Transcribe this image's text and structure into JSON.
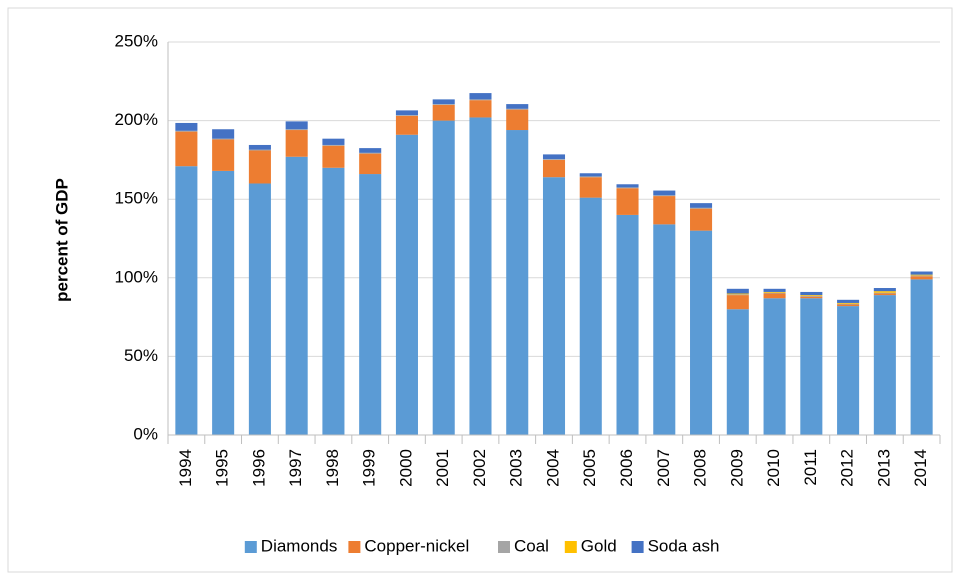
{
  "chart_data": {
    "type": "stacked-bar",
    "y_label": "percent of GDP",
    "categories": [
      "1994",
      "1995",
      "1996",
      "1997",
      "1998",
      "1999",
      "2000",
      "2001",
      "2002",
      "2003",
      "2004",
      "2005",
      "2006",
      "2007",
      "2008",
      "2009",
      "2010",
      "2011",
      "2012",
      "2013",
      "2014"
    ],
    "series": [
      {
        "name": "Diamonds",
        "color": "#5b9bd5",
        "values": [
          171,
          168,
          160,
          177,
          170,
          166,
          191,
          200,
          202,
          194,
          164,
          151,
          140,
          134,
          130,
          80,
          87,
          87,
          82,
          89,
          99
        ]
      },
      {
        "name": "Copper-nickel",
        "color": "#ed7d31",
        "values": [
          22,
          20,
          21,
          17,
          14,
          13,
          12,
          10,
          11,
          13,
          11,
          13,
          17,
          18,
          14,
          9,
          3,
          1,
          1,
          1,
          2
        ]
      },
      {
        "name": "Coal",
        "color": "#a5a5a5",
        "values": [
          0.5,
          0.5,
          0.5,
          0.5,
          0.5,
          0.5,
          0.5,
          0.5,
          0.5,
          0.5,
          0.5,
          0.5,
          0.5,
          0.5,
          0.5,
          0.5,
          0.5,
          0.5,
          0.5,
          0.5,
          0.5
        ]
      },
      {
        "name": "Gold",
        "color": "#ffc000",
        "values": [
          0,
          0,
          0,
          0,
          0,
          0,
          0,
          0,
          0,
          0,
          0,
          0,
          0,
          0,
          0,
          0.5,
          0.5,
          0.5,
          0.5,
          1,
          0.5
        ]
      },
      {
        "name": "Soda ash",
        "color": "#4472c4",
        "values": [
          5,
          6,
          3,
          5,
          4,
          3,
          3,
          3,
          4,
          3,
          3,
          2,
          2,
          3,
          3,
          3,
          2,
          2,
          2,
          2,
          2
        ]
      }
    ],
    "ylim": [
      0,
      250
    ],
    "yticks": [
      {
        "value": 0,
        "label": "0%"
      },
      {
        "value": 50,
        "label": "50%"
      },
      {
        "value": 100,
        "label": "100%"
      },
      {
        "value": 150,
        "label": "150%"
      },
      {
        "value": 200,
        "label": "200%"
      },
      {
        "value": 250,
        "label": "250%"
      }
    ],
    "grid": true,
    "legend": "bottom"
  }
}
